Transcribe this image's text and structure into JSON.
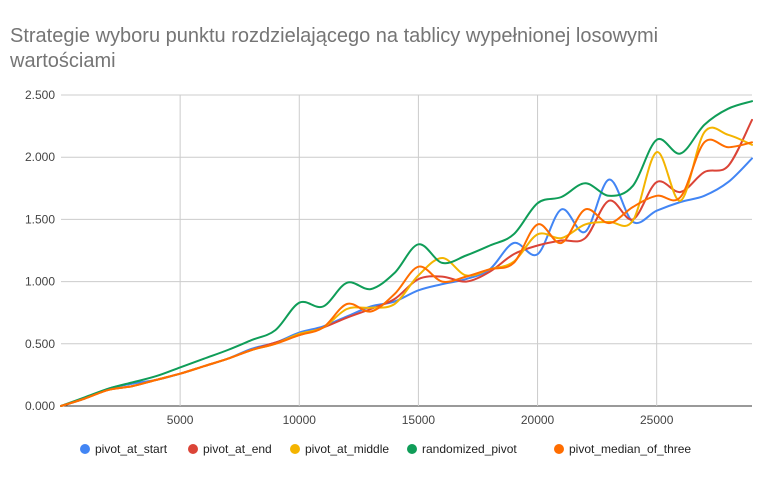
{
  "chart_data": {
    "type": "line",
    "title": "Strategie wyboru punktu rozdzielającego na tablicy wypełnionej losowymi wartościami",
    "xlabel": "",
    "ylabel": "",
    "xlim": [
      0,
      29000
    ],
    "ylim": [
      0,
      2.5
    ],
    "x_ticks": [
      5000,
      10000,
      15000,
      20000,
      25000
    ],
    "x_tick_labels": [
      "5000",
      "10000",
      "15000",
      "20000",
      "25000"
    ],
    "y_ticks": [
      0,
      0.5,
      1,
      1.5,
      2,
      2.5
    ],
    "y_tick_labels": [
      "0.000",
      "0.500",
      "1.000",
      "1.500",
      "2.000",
      "2.500"
    ],
    "grid": true,
    "legend_position": "bottom",
    "series": [
      {
        "name": "pivot_at_start",
        "color": "#4285f4",
        "points": [
          [
            0,
            0
          ],
          [
            1000,
            0.06
          ],
          [
            2000,
            0.14
          ],
          [
            3000,
            0.18
          ],
          [
            4000,
            0.21
          ],
          [
            5000,
            0.26
          ],
          [
            6000,
            0.32
          ],
          [
            7000,
            0.38
          ],
          [
            8000,
            0.46
          ],
          [
            9000,
            0.51
          ],
          [
            10000,
            0.59
          ],
          [
            11000,
            0.64
          ],
          [
            12000,
            0.72
          ],
          [
            13000,
            0.8
          ],
          [
            14000,
            0.84
          ],
          [
            15000,
            0.93
          ],
          [
            16000,
            0.98
          ],
          [
            17000,
            1.02
          ],
          [
            18000,
            1.1
          ],
          [
            19000,
            1.31
          ],
          [
            20000,
            1.22
          ],
          [
            21000,
            1.58
          ],
          [
            22000,
            1.4
          ],
          [
            23000,
            1.82
          ],
          [
            24000,
            1.48
          ],
          [
            25000,
            1.57
          ],
          [
            26000,
            1.64
          ],
          [
            27000,
            1.69
          ],
          [
            28000,
            1.8
          ],
          [
            29000,
            1.99
          ]
        ]
      },
      {
        "name": "pivot_at_end",
        "color": "#db4437",
        "points": [
          [
            0,
            0
          ],
          [
            1000,
            0.06
          ],
          [
            2000,
            0.13
          ],
          [
            3000,
            0.16
          ],
          [
            4000,
            0.21
          ],
          [
            5000,
            0.26
          ],
          [
            6000,
            0.32
          ],
          [
            7000,
            0.38
          ],
          [
            8000,
            0.45
          ],
          [
            9000,
            0.51
          ],
          [
            10000,
            0.57
          ],
          [
            11000,
            0.63
          ],
          [
            12000,
            0.71
          ],
          [
            13000,
            0.78
          ],
          [
            14000,
            0.86
          ],
          [
            15000,
            1.02
          ],
          [
            16000,
            1.04
          ],
          [
            17000,
            1.0
          ],
          [
            18000,
            1.08
          ],
          [
            19000,
            1.22
          ],
          [
            20000,
            1.29
          ],
          [
            21000,
            1.33
          ],
          [
            22000,
            1.35
          ],
          [
            23000,
            1.65
          ],
          [
            24000,
            1.5
          ],
          [
            25000,
            1.8
          ],
          [
            26000,
            1.72
          ],
          [
            27000,
            1.88
          ],
          [
            28000,
            1.93
          ],
          [
            29000,
            2.3
          ]
        ]
      },
      {
        "name": "pivot_at_middle",
        "color": "#f4b400",
        "points": [
          [
            0,
            0
          ],
          [
            1000,
            0.06
          ],
          [
            2000,
            0.13
          ],
          [
            3000,
            0.16
          ],
          [
            4000,
            0.21
          ],
          [
            5000,
            0.26
          ],
          [
            6000,
            0.32
          ],
          [
            7000,
            0.38
          ],
          [
            8000,
            0.45
          ],
          [
            9000,
            0.5
          ],
          [
            10000,
            0.58
          ],
          [
            11000,
            0.63
          ],
          [
            12000,
            0.78
          ],
          [
            13000,
            0.79
          ],
          [
            14000,
            0.82
          ],
          [
            15000,
            1.05
          ],
          [
            16000,
            1.19
          ],
          [
            17000,
            1.05
          ],
          [
            18000,
            1.1
          ],
          [
            19000,
            1.16
          ],
          [
            20000,
            1.38
          ],
          [
            21000,
            1.35
          ],
          [
            22000,
            1.46
          ],
          [
            23000,
            1.48
          ],
          [
            24000,
            1.49
          ],
          [
            25000,
            2.04
          ],
          [
            26000,
            1.65
          ],
          [
            27000,
            2.2
          ],
          [
            28000,
            2.18
          ],
          [
            29000,
            2.1
          ]
        ]
      },
      {
        "name": "randomized_pivot",
        "color": "#0f9d58",
        "points": [
          [
            0,
            0
          ],
          [
            1000,
            0.07
          ],
          [
            2000,
            0.14
          ],
          [
            3000,
            0.19
          ],
          [
            4000,
            0.24
          ],
          [
            5000,
            0.31
          ],
          [
            6000,
            0.38
          ],
          [
            7000,
            0.45
          ],
          [
            8000,
            0.53
          ],
          [
            9000,
            0.61
          ],
          [
            10000,
            0.83
          ],
          [
            11000,
            0.8
          ],
          [
            12000,
            0.99
          ],
          [
            13000,
            0.94
          ],
          [
            14000,
            1.07
          ],
          [
            15000,
            1.3
          ],
          [
            16000,
            1.15
          ],
          [
            17000,
            1.21
          ],
          [
            18000,
            1.29
          ],
          [
            19000,
            1.38
          ],
          [
            20000,
            1.63
          ],
          [
            21000,
            1.68
          ],
          [
            22000,
            1.79
          ],
          [
            23000,
            1.69
          ],
          [
            24000,
            1.77
          ],
          [
            25000,
            2.14
          ],
          [
            26000,
            2.03
          ],
          [
            27000,
            2.26
          ],
          [
            28000,
            2.39
          ],
          [
            29000,
            2.45
          ]
        ]
      },
      {
        "name": "pivot_median_of_three",
        "color": "#ff6d00",
        "points": [
          [
            0,
            0
          ],
          [
            1000,
            0.06
          ],
          [
            2000,
            0.13
          ],
          [
            3000,
            0.16
          ],
          [
            4000,
            0.21
          ],
          [
            5000,
            0.26
          ],
          [
            6000,
            0.32
          ],
          [
            7000,
            0.38
          ],
          [
            8000,
            0.45
          ],
          [
            9000,
            0.5
          ],
          [
            10000,
            0.57
          ],
          [
            11000,
            0.63
          ],
          [
            12000,
            0.82
          ],
          [
            13000,
            0.76
          ],
          [
            14000,
            0.9
          ],
          [
            15000,
            1.12
          ],
          [
            16000,
            1.0
          ],
          [
            17000,
            1.04
          ],
          [
            18000,
            1.1
          ],
          [
            19000,
            1.15
          ],
          [
            20000,
            1.46
          ],
          [
            21000,
            1.31
          ],
          [
            22000,
            1.58
          ],
          [
            23000,
            1.47
          ],
          [
            24000,
            1.6
          ],
          [
            25000,
            1.69
          ],
          [
            26000,
            1.68
          ],
          [
            27000,
            2.12
          ],
          [
            28000,
            2.08
          ],
          [
            29000,
            2.12
          ]
        ]
      }
    ]
  }
}
